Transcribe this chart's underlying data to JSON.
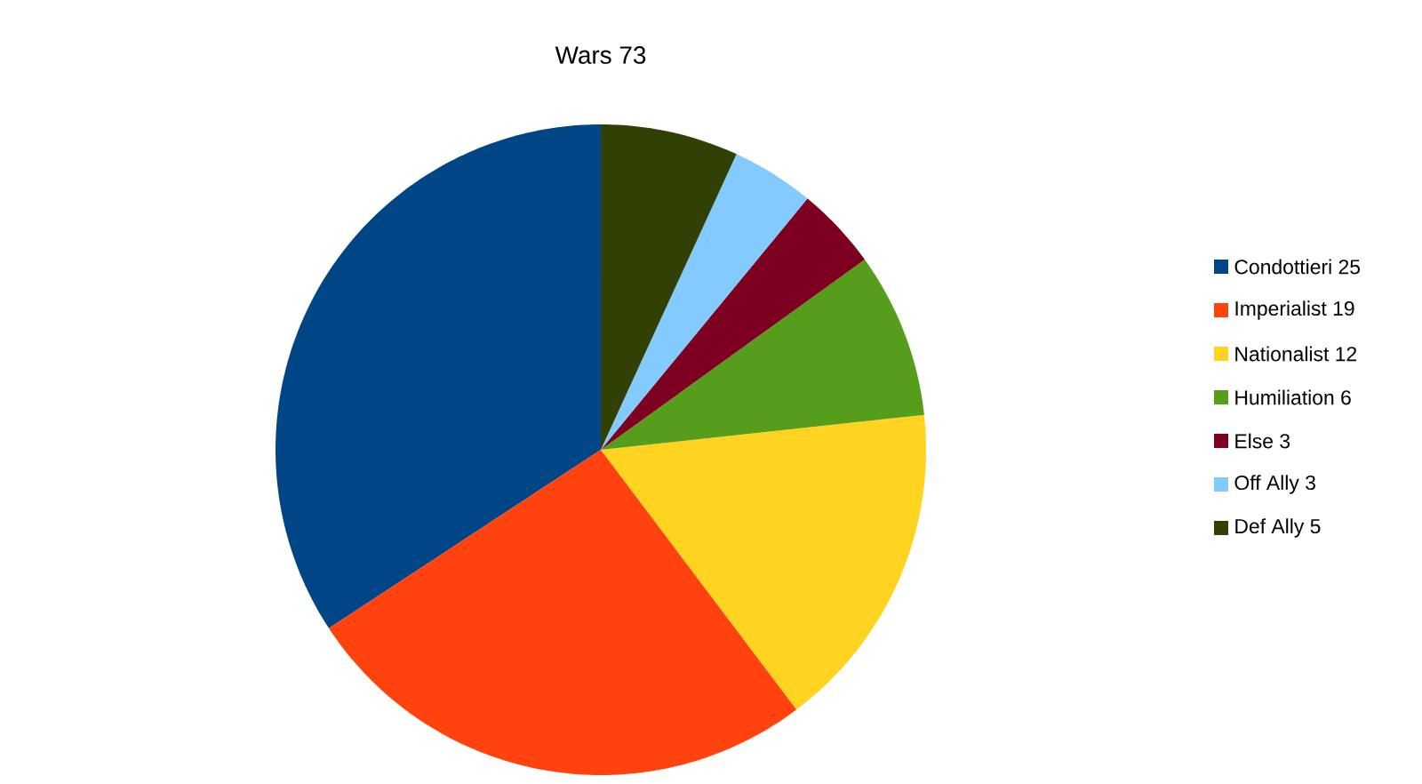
{
  "chart_data": {
    "type": "pie",
    "title": "Wars 73",
    "categories": [
      "Condottieri 25",
      "Imperialist 19",
      "Nationalist 12",
      "Humiliation 6",
      "Else 3",
      "Off Ally 3",
      "Def Ally 5"
    ],
    "values": [
      25,
      19,
      12,
      6,
      3,
      3,
      5
    ],
    "colors": [
      "#004586",
      "#ff420e",
      "#ffd320",
      "#579d1c",
      "#7e0021",
      "#83caff",
      "#314004"
    ],
    "legend": "right"
  }
}
